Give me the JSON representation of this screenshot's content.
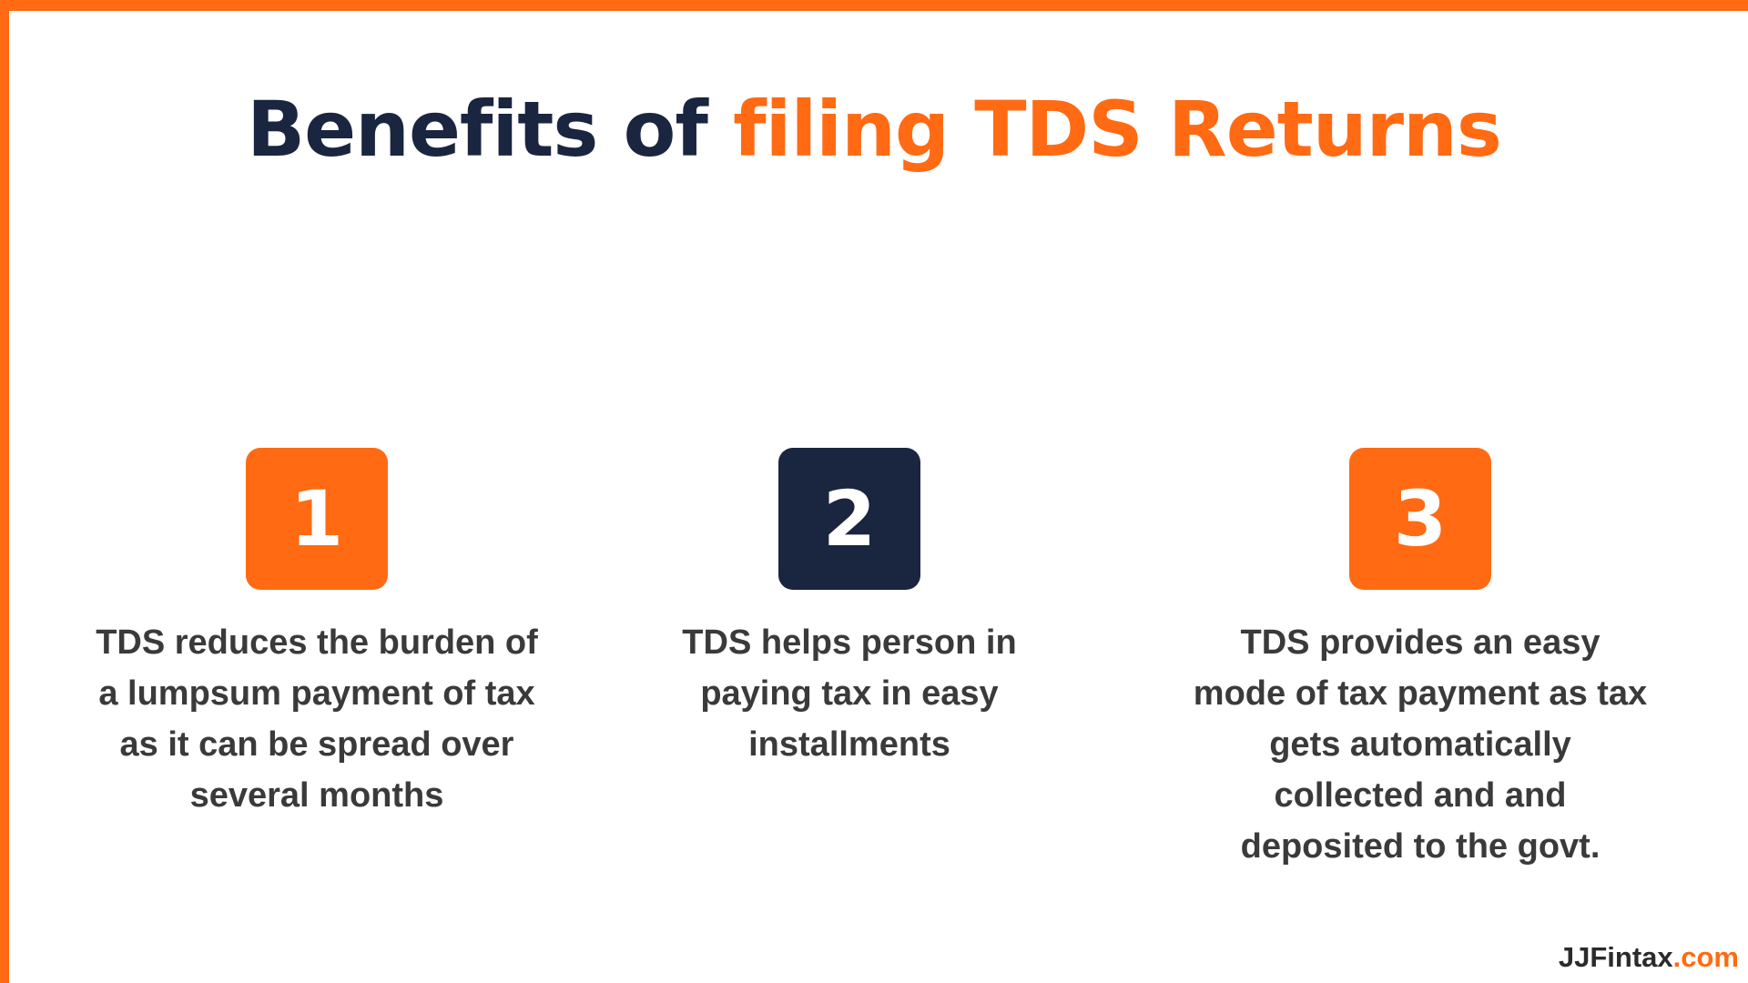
{
  "title": {
    "prefix": "Benefits of ",
    "highlight": "filing TDS Returns"
  },
  "benefits": [
    {
      "number": "1",
      "box_color": "#ff6a13",
      "text": "TDS reduces the burden of a lumpsum payment of tax as it can be spread over several months"
    },
    {
      "number": "2",
      "box_color": "#1a2540",
      "text": "TDS helps person in paying tax in easy installments"
    },
    {
      "number": "3",
      "box_color": "#ff6a13",
      "text": "TDS provides an easy mode of tax payment as tax gets automatically collected and and deposited to the govt."
    }
  ],
  "brand": {
    "name": "JJFintax",
    "suffix": ".com"
  },
  "colors": {
    "accent": "#ff6a13",
    "navy": "#1a2540",
    "text": "#3a3a3a",
    "background": "#ffffff"
  }
}
